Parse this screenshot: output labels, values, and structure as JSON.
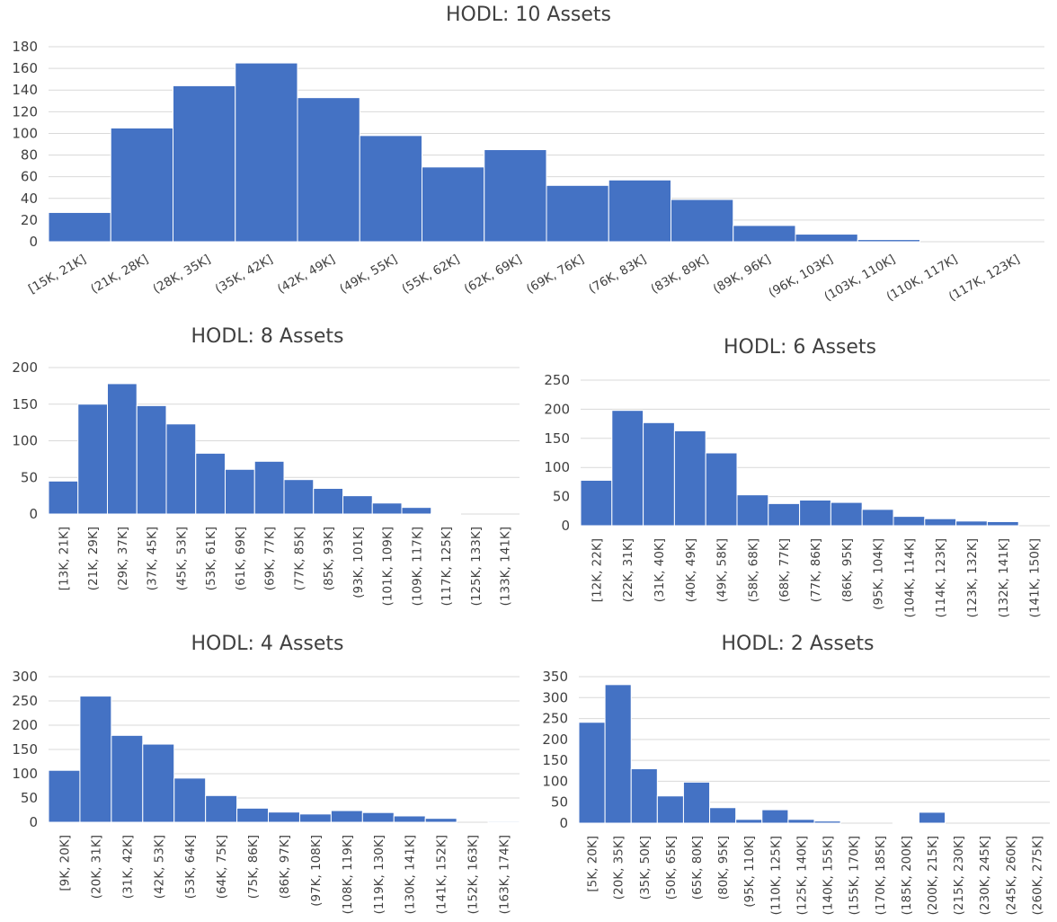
{
  "bar_color": "#4472C4",
  "grid_color": "#D9D9D9",
  "text_color": "#404040",
  "chart_data": [
    {
      "type": "bar",
      "title": "HODL: 10 Assets",
      "xlabel": "",
      "ylabel": "",
      "ylim": [
        0,
        180
      ],
      "yticks": [
        0,
        20,
        40,
        60,
        80,
        100,
        120,
        140,
        160,
        180
      ],
      "grid": true,
      "categories": [
        "[15K, 21K]",
        "(21K, 28K]",
        "(28K, 35K]",
        "(35K, 42K]",
        "(42K, 49K]",
        "(49K, 55K]",
        "(55K, 62K]",
        "(62K, 69K]",
        "(69K, 76K]",
        "(76K, 83K]",
        "(83K, 89K]",
        "(89K, 96K]",
        "(96K, 103K]",
        "(103K, 110K]",
        "(110K, 117K]",
        "(117K, 123K]"
      ],
      "values": [
        27,
        105,
        144,
        165,
        133,
        98,
        69,
        85,
        52,
        57,
        39,
        15,
        7,
        2,
        0,
        0
      ]
    },
    {
      "type": "bar",
      "title": "HODL: 8 Assets",
      "xlabel": "",
      "ylabel": "",
      "ylim": [
        0,
        200
      ],
      "yticks": [
        0,
        50,
        100,
        150,
        200
      ],
      "grid": true,
      "categories": [
        "[13K, 21K]",
        "(21K, 29K]",
        "(29K, 37K]",
        "(37K, 45K]",
        "(45K, 53K]",
        "(53K, 61K]",
        "(61K, 69K]",
        "(69K, 77K]",
        "(77K, 85K]",
        "(85K, 93K]",
        "(93K, 101K]",
        "(101K, 109K]",
        "(109K, 117K]",
        "(117K, 125K]",
        "(125K, 133K]",
        "(133K, 141K]"
      ],
      "values": [
        45,
        150,
        178,
        148,
        123,
        83,
        61,
        72,
        47,
        35,
        25,
        15,
        9,
        1,
        0,
        0
      ]
    },
    {
      "type": "bar",
      "title": "HODL: 6 Assets",
      "xlabel": "",
      "ylabel": "",
      "ylim": [
        0,
        250
      ],
      "yticks": [
        0,
        50,
        100,
        150,
        200,
        250
      ],
      "grid": true,
      "categories": [
        "[12K, 22K]",
        "(22K, 31K]",
        "(31K, 40K]",
        "(40K, 49K]",
        "(49K, 58K]",
        "(58K, 68K]",
        "(68K, 77K]",
        "(77K, 86K]",
        "(86K, 95K]",
        "(95K, 104K]",
        "(104K, 114K]",
        "(114K, 123K]",
        "(123K, 132K]",
        "(132K, 141K]",
        "(141K, 150K]"
      ],
      "values": [
        78,
        198,
        177,
        163,
        125,
        53,
        38,
        44,
        40,
        28,
        16,
        12,
        8,
        7,
        0
      ]
    },
    {
      "type": "bar",
      "title": "HODL: 4 Assets",
      "xlabel": "",
      "ylabel": "",
      "ylim": [
        0,
        300
      ],
      "yticks": [
        0,
        50,
        100,
        150,
        200,
        250,
        300
      ],
      "grid": true,
      "categories": [
        "[9K, 20K]",
        "(20K, 31K]",
        "(31K, 42K]",
        "(42K, 53K]",
        "(53K, 64K]",
        "(64K, 75K]",
        "(75K, 86K]",
        "(86K, 97K]",
        "(97K, 108K]",
        "(108K, 119K]",
        "(119K, 130K]",
        "(130K, 141K]",
        "(141K, 152K]",
        "(152K, 163K]",
        "(163K, 174K]"
      ],
      "values": [
        107,
        260,
        179,
        161,
        91,
        55,
        29,
        21,
        17,
        24,
        20,
        13,
        8,
        0,
        2
      ]
    },
    {
      "type": "bar",
      "title": "HODL: 2 Assets",
      "xlabel": "",
      "ylabel": "",
      "ylim": [
        0,
        350
      ],
      "yticks": [
        0,
        50,
        100,
        150,
        200,
        250,
        300,
        350
      ],
      "grid": true,
      "categories": [
        "[5K, 20K]",
        "(20K, 35K]",
        "(35K, 50K]",
        "(50K, 65K]",
        "(65K, 80K]",
        "(80K, 95K]",
        "(95K, 110K]",
        "(110K, 125K]",
        "(125K, 140K]",
        "(140K, 155K]",
        "(155K, 170K]",
        "(170K, 185K]",
        "(185K, 200K]",
        "(200K, 215K]",
        "(215K, 230K]",
        "(230K, 245K]",
        "(245K, 260K]",
        "(260K, 275K]"
      ],
      "values": [
        241,
        331,
        130,
        65,
        98,
        37,
        9,
        32,
        9,
        5,
        0,
        0,
        2,
        26,
        0,
        0,
        0,
        0
      ]
    }
  ]
}
